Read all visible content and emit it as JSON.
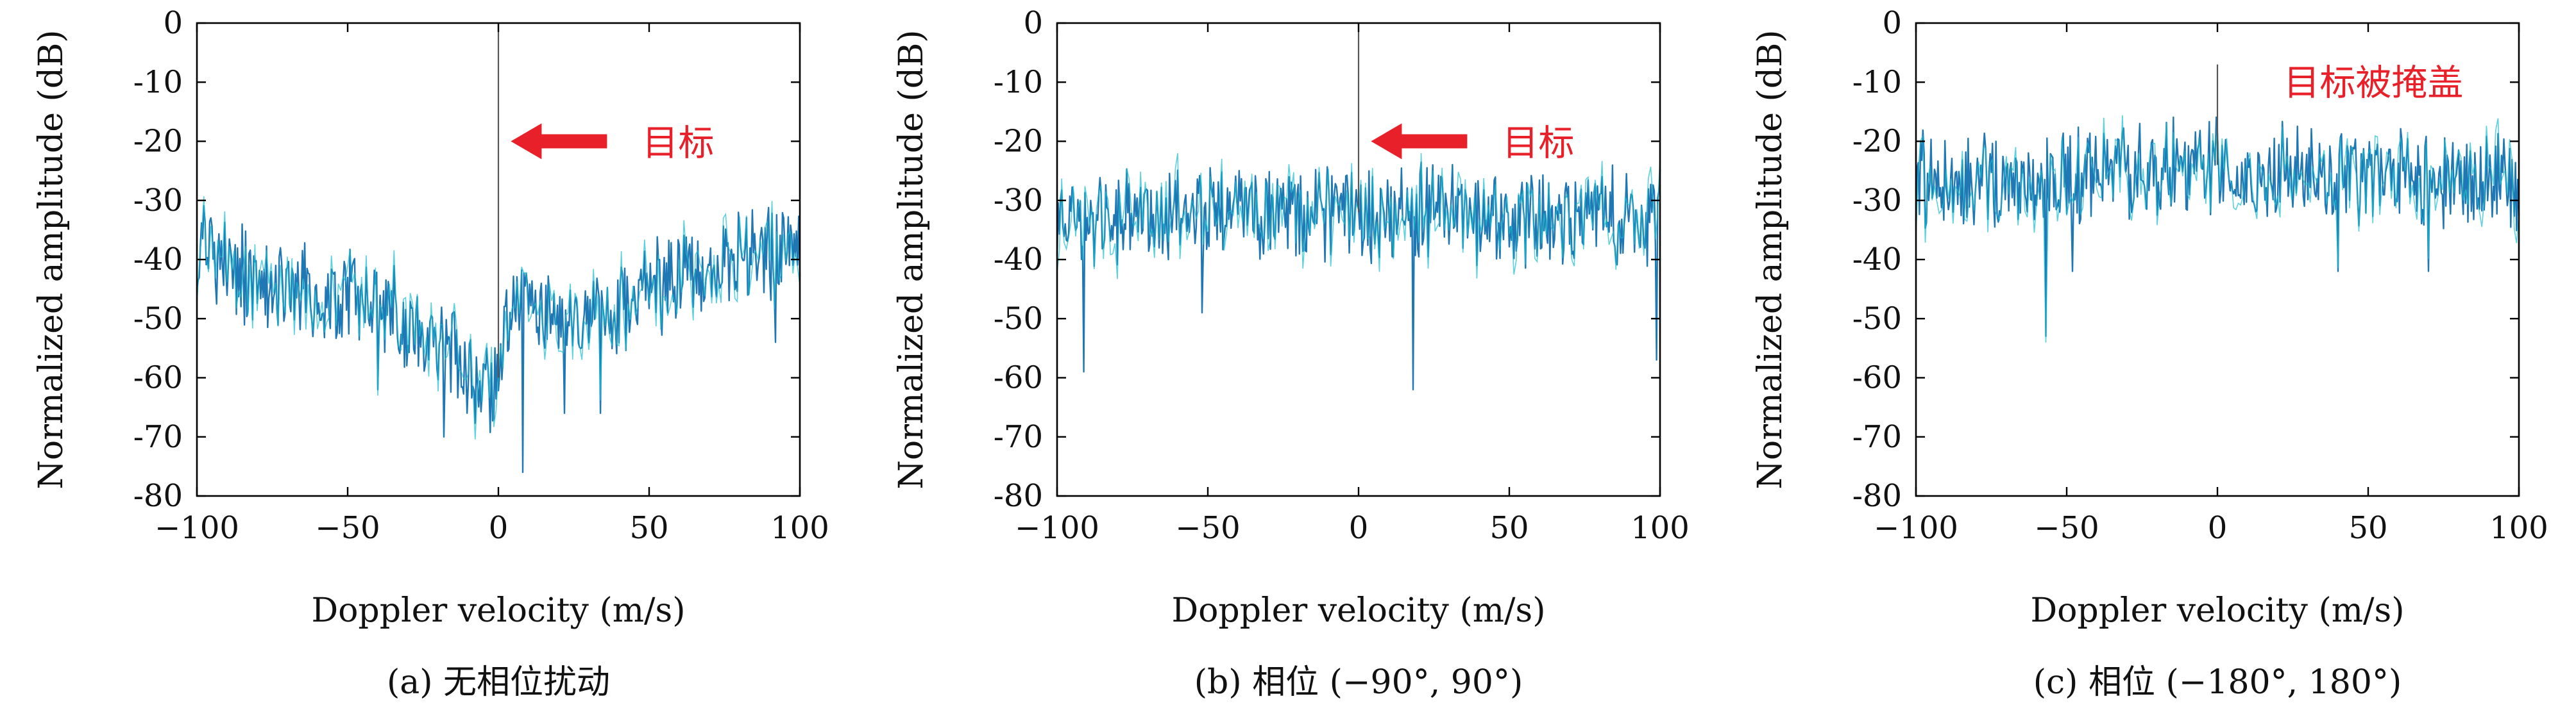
{
  "chart_data": [
    {
      "type": "line",
      "caption": "(a) 无相位扰动",
      "xlabel": "Doppler velocity (m/s)",
      "ylabel": "Normalized amplitude (dB)",
      "xlim": [
        -100,
        100
      ],
      "ylim": [
        -80,
        0
      ],
      "xticks": [
        -100,
        -50,
        0,
        50,
        100
      ],
      "yticks": [
        0,
        -10,
        -20,
        -30,
        -40,
        -50,
        -60,
        -70,
        -80
      ],
      "grid": false,
      "annotation": {
        "text": "目标",
        "arrow": true,
        "x": 2,
        "y": -20
      },
      "profile": {
        "points": [
          [
            -100,
            -38
          ],
          [
            -80,
            -44
          ],
          [
            -60,
            -46
          ],
          [
            -40,
            -48
          ],
          [
            -20,
            -54
          ],
          [
            -10,
            -58
          ],
          [
            -3,
            -63
          ],
          [
            0,
            -60
          ],
          [
            2,
            -55
          ],
          [
            5,
            -47
          ],
          [
            20,
            -50
          ],
          [
            40,
            -47
          ],
          [
            60,
            -43
          ],
          [
            80,
            -40
          ],
          [
            100,
            -38
          ]
        ],
        "noise_amp": 7,
        "peak": {
          "x": 0,
          "y": 0
        },
        "dips": [
          [
            -40,
            -62
          ],
          [
            -18,
            -70
          ],
          [
            8,
            -76
          ],
          [
            22,
            -66
          ],
          [
            34,
            -66
          ],
          [
            92,
            -54
          ]
        ]
      }
    },
    {
      "type": "line",
      "caption": "(b) 相位 (−90°, 90°)",
      "xlabel": "Doppler velocity (m/s)",
      "ylabel": "Normalized amplitude (dB)",
      "xlim": [
        -100,
        100
      ],
      "ylim": [
        -80,
        0
      ],
      "xticks": [
        -100,
        -50,
        0,
        50,
        100
      ],
      "yticks": [
        0,
        -10,
        -20,
        -30,
        -40,
        -50,
        -60,
        -70,
        -80
      ],
      "grid": false,
      "annotation": {
        "text": "目标",
        "arrow": true,
        "x": 2,
        "y": -20
      },
      "profile": {
        "points": [
          [
            -100,
            -33
          ],
          [
            -50,
            -33
          ],
          [
            0,
            -32
          ],
          [
            50,
            -33
          ],
          [
            100,
            -33
          ]
        ],
        "noise_amp": 7,
        "peak": {
          "x": 0,
          "y": 0
        },
        "dips": [
          [
            -91,
            -59
          ],
          [
            -52,
            -49
          ],
          [
            18,
            -62
          ],
          [
            99,
            -57
          ]
        ]
      }
    },
    {
      "type": "line",
      "caption": "(c) 相位 (−180°, 180°)",
      "xlabel": "Doppler velocity (m/s)",
      "ylabel": "Normalized amplitude (dB)",
      "xlim": [
        -100,
        100
      ],
      "ylim": [
        -80,
        0
      ],
      "xticks": [
        -100,
        -50,
        0,
        50,
        100
      ],
      "yticks": [
        0,
        -10,
        -20,
        -30,
        -40,
        -50,
        -60,
        -70,
        -80
      ],
      "grid": false,
      "annotation": {
        "text": "目标被掩盖",
        "arrow": false,
        "x": 22,
        "y": -10
      },
      "profile": {
        "points": [
          [
            -100,
            -27
          ],
          [
            -50,
            -26
          ],
          [
            0,
            -24
          ],
          [
            50,
            -26
          ],
          [
            100,
            -27
          ]
        ],
        "noise_amp": 7,
        "peak": {
          "x": 0,
          "y": -7
        },
        "dips": [
          [
            -57,
            -53
          ],
          [
            -48,
            -42
          ],
          [
            40,
            -42
          ],
          [
            70,
            -42
          ]
        ]
      }
    }
  ],
  "colors": {
    "series": "#1f77b4",
    "series_alt": "#17becf",
    "peak": "#555555",
    "annotation": "#e8202a",
    "axis": "#000000"
  }
}
